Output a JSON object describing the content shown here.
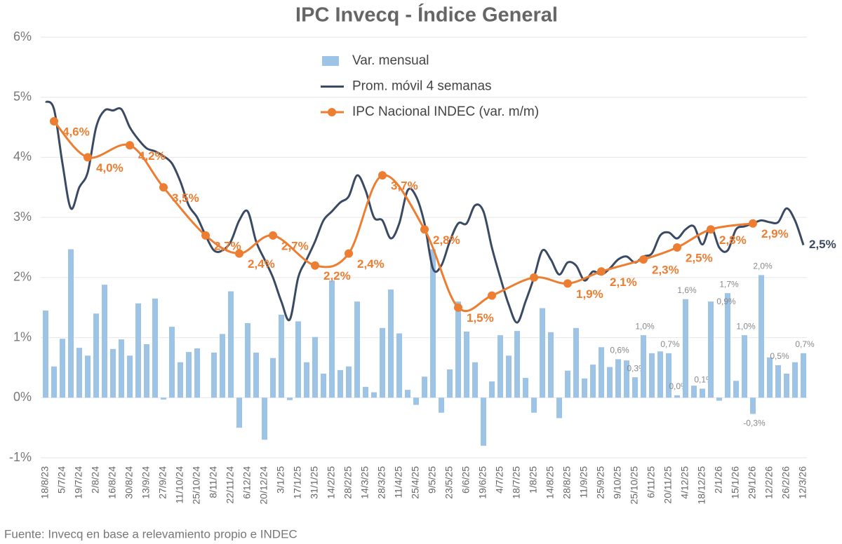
{
  "chart_data": {
    "type": "bar_line",
    "title": "IPC Invecq - Índice General",
    "source": "Fuente: Invecq en base a relevamiento propio e INDEC",
    "categories": [
      "18/8/23",
      null,
      "5/7/24",
      null,
      "19/7/24",
      null,
      "2/8/24",
      null,
      "16/8/24",
      null,
      "30/8/24",
      null,
      "13/9/24",
      null,
      "27/9/24",
      null,
      "11/10/24",
      null,
      "25/10/24",
      null,
      "8/11/24",
      null,
      "22/11/24",
      null,
      "6/12/24",
      null,
      "20/12/24",
      null,
      "3/1/25",
      null,
      "17/1/25",
      null,
      "31/1/25",
      null,
      "14/2/25",
      null,
      "28/2/25",
      null,
      "14/3/25",
      null,
      "28/3/25",
      null,
      "11/4/25",
      null,
      "25/4/25",
      null,
      "9/5/25",
      null,
      "23/5/25",
      null,
      "6/6/25",
      null,
      "19/6/25",
      null,
      "4/7/25",
      null,
      "18/7/25",
      null,
      "1/8/25",
      null,
      "14/8/25",
      null,
      "28/8/25",
      null,
      "11/9/25",
      null,
      "25/9/25",
      null,
      "9/10/25",
      null,
      "25/10/25",
      null,
      "6/11/25",
      null,
      "20/11/25",
      null,
      "4/12/25",
      null,
      "18/12/25",
      null,
      "2/1/26",
      null,
      "15/1/26",
      null,
      "29/1/26",
      null,
      "12/2/26",
      null,
      "26/2/26",
      null,
      "12/3/26"
    ],
    "ylim": [
      -1,
      6
    ],
    "yticks": [
      {
        "value": -1,
        "label": "-1%"
      },
      {
        "value": 0,
        "label": "0%"
      },
      {
        "value": 1,
        "label": "1%"
      },
      {
        "value": 2,
        "label": "2%"
      },
      {
        "value": 3,
        "label": "3%"
      },
      {
        "value": 4,
        "label": "4%"
      },
      {
        "value": 5,
        "label": "5%"
      },
      {
        "value": 6,
        "label": "6%"
      }
    ],
    "grid": true,
    "annotations": [
      "0,9%"
    ],
    "series": [
      {
        "name": "Var. mensual",
        "type": "bar",
        "color": "#9dc3e6",
        "values": [
          1.45,
          0.52,
          0.98,
          2.47,
          0.83,
          0.7,
          1.4,
          1.88,
          0.81,
          0.97,
          0.7,
          1.57,
          0.89,
          1.65,
          -0.03,
          1.18,
          0.59,
          0.76,
          0.82,
          0,
          0.75,
          1.06,
          1.77,
          -0.5,
          1.24,
          0.75,
          -0.7,
          0.66,
          1.38,
          -0.04,
          1.27,
          0.59,
          1.01,
          0.4,
          1.95,
          0.46,
          0.52,
          1.6,
          0.18,
          0.09,
          1.16,
          1.8,
          1.07,
          0.13,
          -0.12,
          0.35,
          2.47,
          -0.25,
          0.47,
          1.6,
          1.1,
          0.59,
          -0.8,
          0.27,
          1.04,
          0.7,
          1.11,
          0.33,
          -0.25,
          1.49,
          1.09,
          -0.34,
          0.45,
          1.16,
          0.32,
          0.55,
          0.84,
          0.51,
          0.64,
          0.62,
          0.34,
          1.04,
          0.74,
          0.77,
          0.74,
          0.04,
          1.64,
          0.2,
          0.15,
          1.6,
          -0.05,
          1.74,
          0.28,
          1.04,
          -0.27,
          2.04,
          0.67,
          0.54,
          0.4,
          0.59,
          0.74
        ],
        "value_labels": [
          null,
          null,
          null,
          null,
          null,
          null,
          null,
          null,
          null,
          null,
          null,
          null,
          null,
          null,
          null,
          null,
          null,
          null,
          null,
          null,
          null,
          null,
          null,
          null,
          null,
          null,
          null,
          null,
          null,
          null,
          null,
          null,
          null,
          null,
          null,
          null,
          null,
          null,
          null,
          null,
          null,
          null,
          null,
          null,
          null,
          null,
          null,
          null,
          null,
          null,
          null,
          null,
          null,
          null,
          null,
          null,
          null,
          null,
          null,
          null,
          null,
          null,
          null,
          null,
          null,
          null,
          null,
          null,
          "0,6%",
          null,
          "0,3%",
          "1,0%",
          null,
          null,
          "0,7%",
          "0,0%",
          "1,6%",
          null,
          "0,1%",
          null,
          null,
          "1,7%",
          null,
          "1,0%",
          "-0,3%",
          "2,0%",
          null,
          "0,5%",
          null,
          null,
          "0,7%"
        ]
      },
      {
        "name": "Prom. móvil 4 semanas",
        "type": "line",
        "color": "#3b4a63",
        "values": [
          4.93,
          4.8,
          3.9,
          3.15,
          3.5,
          3.75,
          4.5,
          4.78,
          4.78,
          4.8,
          4.5,
          4.3,
          4.15,
          4.1,
          4.02,
          3.9,
          3.6,
          3.2,
          3.0,
          2.7,
          2.45,
          2.45,
          2.6,
          2.95,
          3.1,
          2.6,
          2.3,
          2.0,
          1.6,
          1.3,
          2.0,
          2.3,
          2.6,
          2.95,
          3.1,
          3.25,
          3.35,
          3.7,
          3.45,
          3.0,
          2.95,
          2.65,
          2.9,
          3.45,
          3.35,
          2.9,
          2.15,
          2.2,
          2.6,
          2.9,
          2.9,
          3.2,
          3.1,
          2.5,
          2.0,
          1.55,
          1.25,
          1.6,
          2.0,
          2.45,
          2.3,
          2.05,
          2.25,
          2.2,
          1.95,
          2.1,
          2.05,
          2.15,
          2.3,
          2.35,
          2.25,
          2.35,
          2.4,
          2.7,
          2.75,
          2.65,
          2.8,
          2.85,
          2.55,
          2.85,
          2.5,
          2.45,
          2.8,
          2.85,
          2.9,
          2.95,
          2.92,
          2.92,
          3.15,
          2.95,
          2.54
        ],
        "value_labels": [
          null,
          null,
          null,
          null,
          null,
          null,
          null,
          null,
          null,
          null,
          null,
          null,
          null,
          null,
          null,
          null,
          null,
          null,
          null,
          null,
          null,
          null,
          null,
          null,
          null,
          null,
          null,
          null,
          null,
          null,
          null,
          null,
          null,
          null,
          null,
          null,
          null,
          null,
          null,
          null,
          null,
          null,
          null,
          null,
          null,
          null,
          null,
          null,
          null,
          null,
          null,
          null,
          null,
          null,
          null,
          null,
          null,
          null,
          null,
          null,
          null,
          null,
          null,
          null,
          null,
          null,
          null,
          null,
          null,
          null,
          null,
          null,
          null,
          null,
          null,
          null,
          null,
          null,
          null,
          null,
          null,
          null,
          null,
          null,
          null,
          null,
          null,
          null,
          null,
          null,
          "2,5%"
        ]
      },
      {
        "name": "IPC Nacional INDEC (var. m/m)",
        "type": "line",
        "color": "#ed7d31",
        "markers": true,
        "connect_gaps": true,
        "values": [
          null,
          4.6,
          null,
          null,
          null,
          4.0,
          null,
          null,
          null,
          null,
          4.2,
          null,
          null,
          null,
          3.5,
          null,
          null,
          null,
          null,
          2.7,
          null,
          null,
          null,
          2.4,
          null,
          null,
          null,
          2.7,
          null,
          null,
          null,
          null,
          2.2,
          null,
          null,
          null,
          2.4,
          null,
          null,
          null,
          3.7,
          null,
          null,
          null,
          null,
          2.8,
          null,
          null,
          null,
          1.5,
          null,
          null,
          null,
          1.7,
          null,
          null,
          null,
          null,
          2.0,
          null,
          null,
          null,
          1.9,
          null,
          null,
          null,
          2.1,
          null,
          null,
          null,
          null,
          2.3,
          null,
          null,
          null,
          2.5,
          null,
          null,
          null,
          2.8,
          null,
          null,
          null,
          null,
          2.9,
          null,
          null,
          null,
          null,
          null,
          null
        ],
        "value_labels": [
          null,
          "4,6%",
          null,
          null,
          null,
          "4,0%",
          null,
          null,
          null,
          null,
          "4,2%",
          null,
          null,
          null,
          "3,5%",
          null,
          null,
          null,
          null,
          "2,7%",
          null,
          null,
          null,
          "2,4%",
          null,
          null,
          null,
          "2,7%",
          null,
          null,
          null,
          null,
          "2,2%",
          null,
          null,
          null,
          "2,4%",
          null,
          null,
          null,
          "3,7%",
          null,
          null,
          null,
          null,
          "2,8%",
          null,
          null,
          null,
          "1,5%",
          null,
          null,
          null,
          null,
          null,
          null,
          null,
          null,
          null,
          null,
          null,
          null,
          "1,9%",
          null,
          null,
          null,
          "2,1%",
          null,
          null,
          null,
          null,
          "2,3%",
          null,
          null,
          null,
          "2,5%",
          null,
          null,
          null,
          "2,8%",
          null,
          null,
          null,
          null,
          "2,9%",
          null,
          null,
          null,
          null,
          null,
          null
        ]
      }
    ]
  }
}
